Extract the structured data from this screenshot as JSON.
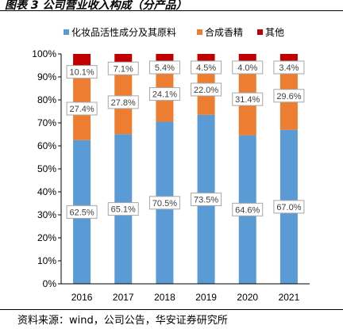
{
  "header": {
    "title": "图表 3  公司营业收入构成（分产品）"
  },
  "footer": {
    "source": "资料来源：wind，公司公告，华安证券研究所"
  },
  "chart_data": {
    "type": "bar",
    "stacked": true,
    "percent": true,
    "categories": [
      "2016",
      "2017",
      "2018",
      "2019",
      "2020",
      "2021"
    ],
    "series": [
      {
        "name": "化妆品活性成分及其原料",
        "color": "#5b9bd5",
        "values": [
          62.5,
          65.1,
          70.5,
          73.5,
          64.6,
          67.0
        ],
        "labels": [
          "62.5%",
          "65.1%",
          "70.5%",
          "73.5%",
          "64.6%",
          "67.0%"
        ]
      },
      {
        "name": "合成香精",
        "color": "#ed7d31",
        "values": [
          27.4,
          27.8,
          24.1,
          22.0,
          31.4,
          29.6
        ],
        "labels": [
          "27.4%",
          "27.8%",
          "24.1%",
          "22.0%",
          "31.4%",
          "29.6%"
        ]
      },
      {
        "name": "其他",
        "color": "#c00000",
        "values": [
          10.1,
          7.1,
          5.4,
          4.5,
          4.0,
          3.4
        ],
        "labels": [
          "10.1%",
          "7.1%",
          "5.4%",
          "4.5%",
          "4.0%",
          "3.4%"
        ]
      }
    ],
    "yticks": [
      "0%",
      "10%",
      "20%",
      "30%",
      "40%",
      "50%",
      "60%",
      "70%",
      "80%",
      "90%",
      "100%"
    ],
    "ylim": [
      0,
      100
    ],
    "legend": "top",
    "grid": false
  }
}
